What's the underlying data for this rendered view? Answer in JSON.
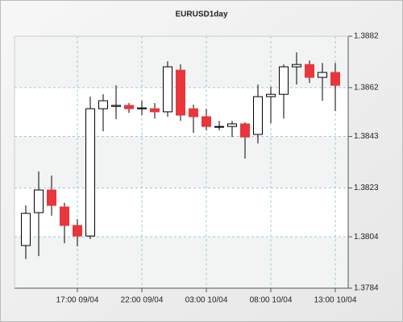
{
  "chart_data": {
    "type": "candlestick",
    "title": "EURUSD1day",
    "categories": [
      null,
      null,
      null,
      null,
      "17:00 09/04",
      null,
      null,
      null,
      null,
      "22:00 09/04",
      null,
      null,
      null,
      null,
      "03:00 10/04",
      null,
      null,
      null,
      null,
      "08:00 10/04",
      null,
      null,
      null,
      null,
      "13:00 10/04"
    ],
    "open": [
      1.38006,
      1.38134,
      1.38222,
      1.38156,
      1.38084,
      1.38043,
      1.38538,
      1.38547,
      1.38551,
      1.38538,
      1.38538,
      1.38526,
      1.38688,
      1.38538,
      1.38507,
      1.38469,
      1.38469,
      1.38479,
      1.38438,
      1.38585,
      1.38594,
      1.38701,
      1.3871,
      1.3866,
      1.38679
    ],
    "high": [
      1.38162,
      1.38294,
      1.38278,
      1.38172,
      1.38109,
      1.38585,
      1.38594,
      1.38629,
      1.3856,
      1.38569,
      1.3856,
      1.38723,
      1.3871,
      1.38554,
      1.38538,
      1.38491,
      1.38491,
      1.38485,
      1.38632,
      1.38623,
      1.3871,
      1.38757,
      1.38726,
      1.38716,
      1.38716
    ],
    "low": [
      1.37953,
      1.37965,
      1.38122,
      1.38015,
      1.38003,
      1.38031,
      1.3845,
      1.38497,
      1.38522,
      1.38513,
      1.385,
      1.38507,
      1.38491,
      1.38444,
      1.38454,
      1.38454,
      1.38428,
      1.38344,
      1.38403,
      1.38482,
      1.385,
      1.38632,
      1.38638,
      1.38569,
      1.38529
    ],
    "close": [
      1.38131,
      1.38222,
      1.38162,
      1.38084,
      1.38043,
      1.38538,
      1.38569,
      1.38551,
      1.38538,
      1.38541,
      1.38526,
      1.38701,
      1.38513,
      1.38507,
      1.38469,
      1.38469,
      1.38479,
      1.38428,
      1.38585,
      1.38594,
      1.38701,
      1.3871,
      1.3866,
      1.38679,
      1.38629
    ],
    "up_color": "#ffffff",
    "down_color": "#e8363c",
    "edge_color": "#000000",
    "ylim": [
      1.3784,
      1.3882
    ],
    "yticks": [
      1.3784,
      1.3804,
      1.3823,
      1.3843,
      1.3862,
      1.3882
    ],
    "grid": true
  }
}
